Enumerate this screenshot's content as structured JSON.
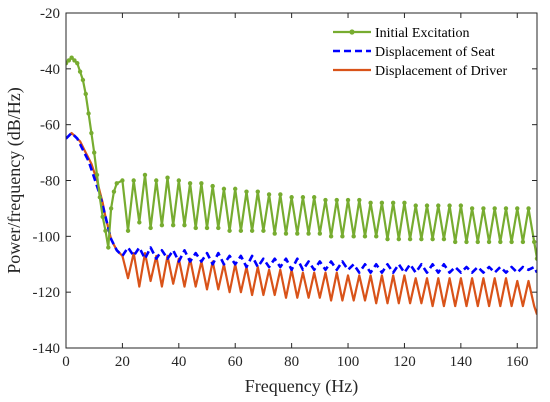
{
  "chart_data": {
    "type": "line",
    "xlabel": "Frequency (Hz)",
    "ylabel": "Power/frequency (dB/Hz)",
    "xlim": [
      0,
      167
    ],
    "ylim": [
      -140,
      -20
    ],
    "xticks": [
      "0",
      "20",
      "40",
      "60",
      "80",
      "100",
      "120",
      "140",
      "160"
    ],
    "yticks": [
      "-20",
      "-40",
      "-60",
      "-80",
      "-100",
      "-120",
      "-140"
    ],
    "grid": false,
    "legend_position": "top-right",
    "series": [
      {
        "name": "Initial Excitation",
        "color": "#77ac30",
        "style": "solid-dots",
        "x": [
          0,
          1,
          2,
          3,
          4,
          5,
          6,
          7,
          8,
          9,
          10,
          11,
          12,
          13,
          14,
          15,
          16,
          17,
          18,
          20,
          22,
          24,
          26,
          28,
          30,
          32,
          34,
          36,
          38,
          40,
          42,
          44,
          46,
          48,
          50,
          52,
          54,
          56,
          58,
          60,
          62,
          64,
          66,
          68,
          70,
          72,
          74,
          76,
          78,
          80,
          82,
          84,
          86,
          88,
          90,
          92,
          94,
          96,
          98,
          100,
          102,
          104,
          106,
          108,
          110,
          112,
          114,
          116,
          118,
          120,
          122,
          124,
          126,
          128,
          130,
          132,
          134,
          136,
          138,
          140,
          142,
          144,
          146,
          148,
          150,
          152,
          154,
          156,
          158,
          160,
          162,
          164,
          166,
          167
        ],
        "y": [
          -38,
          -37,
          -36,
          -37,
          -38,
          -41,
          -44,
          -49,
          -56,
          -63,
          -70,
          -78,
          -86,
          -93,
          -98,
          -104,
          -90,
          -84,
          -81,
          -80,
          -98,
          -80,
          -95,
          -78,
          -97,
          -80,
          -96,
          -79,
          -96,
          -80,
          -96,
          -81,
          -97,
          -81,
          -97,
          -82,
          -97,
          -83,
          -98,
          -83,
          -98,
          -84,
          -98,
          -84,
          -98,
          -85,
          -99,
          -85,
          -99,
          -86,
          -99,
          -86,
          -99,
          -86,
          -99,
          -87,
          -100,
          -87,
          -100,
          -87,
          -100,
          -87,
          -100,
          -88,
          -100,
          -88,
          -101,
          -88,
          -101,
          -88,
          -101,
          -89,
          -101,
          -89,
          -101,
          -89,
          -101,
          -89,
          -102,
          -89,
          -102,
          -90,
          -102,
          -90,
          -102,
          -90,
          -102,
          -90,
          -102,
          -90,
          -102,
          -90,
          -102,
          -108
        ]
      },
      {
        "name": "Displacement of Seat",
        "color": "#0000ff",
        "style": "dashed",
        "x": [
          0,
          1,
          2,
          3,
          4,
          5,
          6,
          7,
          8,
          9,
          10,
          11,
          12,
          13,
          14,
          15,
          16,
          17,
          18,
          20,
          22,
          24,
          26,
          28,
          30,
          32,
          34,
          36,
          38,
          40,
          42,
          44,
          46,
          48,
          50,
          52,
          54,
          56,
          58,
          60,
          62,
          64,
          66,
          68,
          70,
          72,
          74,
          76,
          78,
          80,
          82,
          84,
          86,
          88,
          90,
          92,
          94,
          96,
          98,
          100,
          102,
          104,
          106,
          108,
          110,
          112,
          114,
          116,
          118,
          120,
          122,
          124,
          126,
          128,
          130,
          132,
          134,
          136,
          138,
          140,
          142,
          144,
          146,
          148,
          150,
          152,
          154,
          156,
          158,
          160,
          162,
          164,
          166,
          167
        ],
        "y": [
          -65,
          -64,
          -63,
          -64,
          -65,
          -67,
          -69,
          -71,
          -73,
          -76,
          -79,
          -82,
          -85,
          -89,
          -93,
          -97,
          -101,
          -103,
          -105,
          -107,
          -104,
          -107,
          -104,
          -108,
          -104,
          -108,
          -105,
          -108,
          -105,
          -109,
          -105,
          -109,
          -106,
          -109,
          -106,
          -110,
          -106,
          -110,
          -107,
          -110,
          -107,
          -111,
          -107,
          -111,
          -108,
          -111,
          -108,
          -111,
          -108,
          -112,
          -108,
          -112,
          -109,
          -112,
          -109,
          -112,
          -109,
          -112,
          -109,
          -112,
          -110,
          -113,
          -110,
          -113,
          -110,
          -113,
          -110,
          -113,
          -110,
          -113,
          -110,
          -113,
          -110,
          -113,
          -110,
          -113,
          -110,
          -113,
          -111,
          -113,
          -111,
          -113,
          -111,
          -113,
          -111,
          -113,
          -111,
          -113,
          -111,
          -113,
          -111,
          -112,
          -111,
          -113
        ]
      },
      {
        "name": "Displacement of Driver",
        "color": "#d95319",
        "style": "solid",
        "x": [
          0,
          1,
          2,
          3,
          4,
          5,
          6,
          7,
          8,
          9,
          10,
          11,
          12,
          13,
          14,
          15,
          16,
          17,
          18,
          20,
          22,
          24,
          26,
          28,
          30,
          32,
          34,
          36,
          38,
          40,
          42,
          44,
          46,
          48,
          50,
          52,
          54,
          56,
          58,
          60,
          62,
          64,
          66,
          68,
          70,
          72,
          74,
          76,
          78,
          80,
          82,
          84,
          86,
          88,
          90,
          92,
          94,
          96,
          98,
          100,
          102,
          104,
          106,
          108,
          110,
          112,
          114,
          116,
          118,
          120,
          122,
          124,
          126,
          128,
          130,
          132,
          134,
          136,
          138,
          140,
          142,
          144,
          146,
          148,
          150,
          152,
          154,
          156,
          158,
          160,
          162,
          164,
          166,
          167
        ],
        "y": [
          -65,
          -64,
          -63,
          -64,
          -65,
          -66,
          -68,
          -70,
          -72,
          -74,
          -77,
          -80,
          -84,
          -88,
          -93,
          -97,
          -101,
          -103,
          -105,
          -107,
          -115,
          -106,
          -118,
          -106,
          -116,
          -107,
          -118,
          -107,
          -117,
          -108,
          -118,
          -108,
          -118,
          -109,
          -119,
          -109,
          -119,
          -110,
          -120,
          -110,
          -120,
          -111,
          -121,
          -111,
          -121,
          -112,
          -121,
          -112,
          -122,
          -112,
          -122,
          -113,
          -122,
          -113,
          -122,
          -113,
          -123,
          -113,
          -123,
          -114,
          -123,
          -114,
          -123,
          -114,
          -124,
          -114,
          -124,
          -114,
          -124,
          -114,
          -124,
          -115,
          -124,
          -115,
          -125,
          -115,
          -125,
          -115,
          -125,
          -115,
          -125,
          -115,
          -125,
          -115,
          -125,
          -115,
          -125,
          -115,
          -125,
          -116,
          -125,
          -116,
          -125,
          -128
        ]
      }
    ]
  }
}
